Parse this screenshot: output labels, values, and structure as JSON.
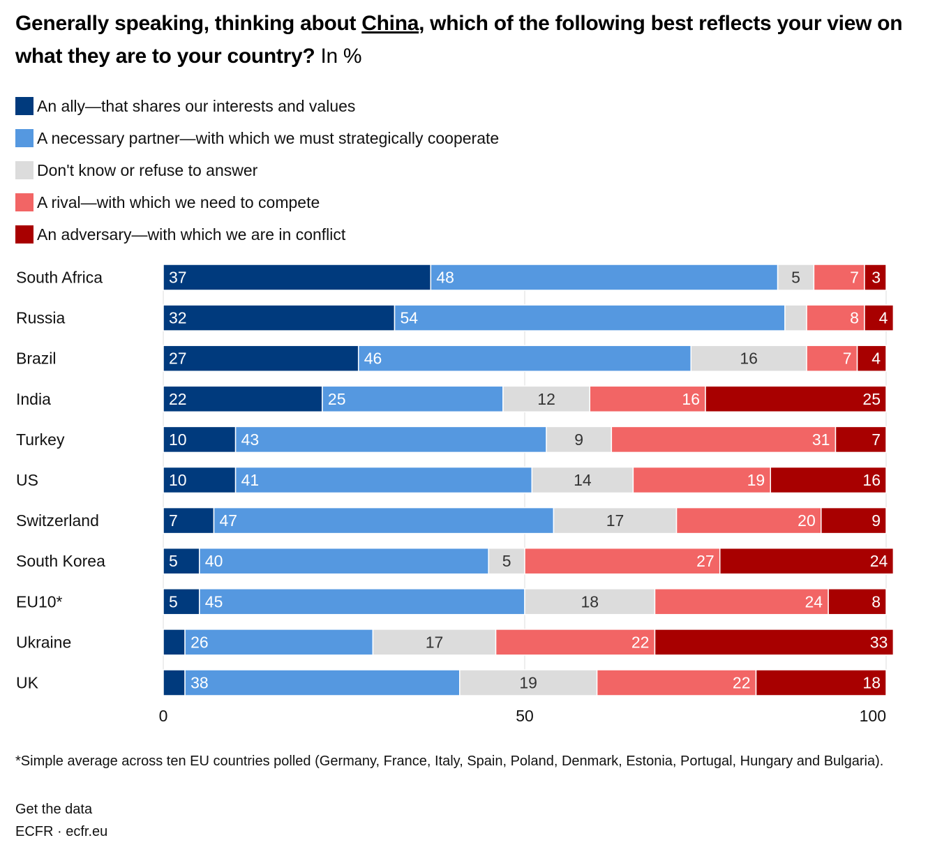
{
  "title": {
    "part1": "Generally speaking, thinking about ",
    "underlined": "China",
    "part2": ", which of the following best reflects your view on what they are to your country?",
    "unit": " In %"
  },
  "colors": {
    "ally": "#003a7d",
    "partner": "#5598e0",
    "dontknow": "#dcdcdc",
    "rival": "#f26565",
    "adversary": "#a80000",
    "gridline": "#dddddd"
  },
  "chart_data": {
    "type": "bar",
    "orientation": "horizontal",
    "stacked": true,
    "categories": [
      "South Africa",
      "Russia",
      "Brazil",
      "India",
      "Turkey",
      "US",
      "Switzerland",
      "South Korea",
      "EU10*",
      "Ukraine",
      "UK"
    ],
    "series": [
      {
        "name": "An ally—that shares our interests and values",
        "key": "ally",
        "values": [
          37,
          32,
          27,
          22,
          10,
          10,
          7,
          5,
          5,
          3,
          3
        ],
        "labels": [
          "37",
          "32",
          "27",
          "22",
          "10",
          "10",
          "7",
          "5",
          "5",
          "",
          ""
        ]
      },
      {
        "name": "A necessary partner—with which we must strategically cooperate",
        "key": "partner",
        "values": [
          48,
          54,
          46,
          25,
          43,
          41,
          47,
          40,
          45,
          26,
          38
        ],
        "labels": [
          "48",
          "54",
          "46",
          "25",
          "43",
          "41",
          "47",
          "40",
          "45",
          "26",
          "38"
        ]
      },
      {
        "name": "Don't know or refuse to answer",
        "key": "dontknow",
        "values": [
          5,
          3,
          16,
          12,
          9,
          14,
          17,
          5,
          18,
          17,
          19
        ],
        "labels": [
          "5",
          "",
          "16",
          "12",
          "9",
          "14",
          "17",
          "5",
          "18",
          "17",
          "19"
        ]
      },
      {
        "name": "A rival—with which we need to compete",
        "key": "rival",
        "values": [
          7,
          8,
          7,
          16,
          31,
          19,
          20,
          27,
          24,
          22,
          22
        ],
        "labels": [
          "7",
          "8",
          "7",
          "16",
          "31",
          "19",
          "20",
          "27",
          "24",
          "22",
          "22"
        ]
      },
      {
        "name": "An adversary—with which we are in conflict",
        "key": "adversary",
        "values": [
          3,
          4,
          4,
          25,
          7,
          16,
          9,
          24,
          8,
          33,
          18
        ],
        "labels": [
          "3",
          "4",
          "4",
          "25",
          "7",
          "16",
          "9",
          "24",
          "8",
          "33",
          "18"
        ]
      }
    ],
    "xlim": [
      0,
      100
    ],
    "xticks": [
      0,
      50,
      100
    ],
    "xtick_labels": [
      "0",
      "50",
      "100"
    ],
    "grid": "vertical at 50",
    "legend": "top-left"
  },
  "footnote": "*Simple average across ten EU countries polled (Germany, France, Italy, Spain, Poland, Denmark, Estonia, Portugal, Hungary and Bulgaria).",
  "get_data": "Get the data",
  "source": "ECFR · ecfr.eu"
}
